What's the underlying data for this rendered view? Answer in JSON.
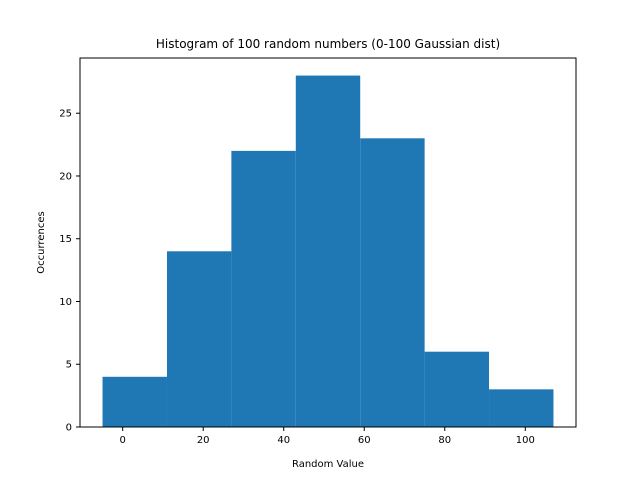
{
  "chart_data": {
    "type": "bar",
    "title": "Histogram of 100 random numbers (0-100 Gaussian dist)",
    "xlabel": "Random Value",
    "ylabel": "Occurrences",
    "bin_edges": [
      -5,
      11,
      27,
      43,
      59,
      75,
      91,
      107
    ],
    "values": [
      4,
      14,
      22,
      28,
      23,
      6,
      3
    ],
    "xlim": [
      -10.6,
      112.6
    ],
    "ylim": [
      0,
      29.4
    ],
    "xticks": [
      0,
      20,
      40,
      60,
      80,
      100
    ],
    "yticks": [
      0,
      5,
      10,
      15,
      20,
      25
    ],
    "grid": false,
    "bar_color": "#1f77b4"
  }
}
